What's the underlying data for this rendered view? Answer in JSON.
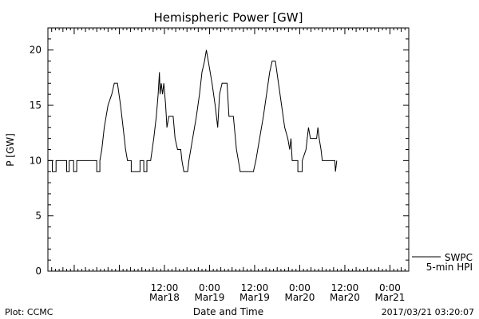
{
  "chart_data": {
    "type": "line",
    "title": "Hemispheric Power [GW]",
    "ylabel": "P [GW]",
    "xlabel": "Date and Time",
    "ylim": [
      0,
      22
    ],
    "yticks": [
      0,
      5,
      10,
      15,
      20
    ],
    "xlim": [
      "2017-03-17 05:00",
      "2017-03-21 05:00"
    ],
    "xticks": [
      {
        "t": "2017-03-18 12:00",
        "time": "12:00",
        "date": "Mar18"
      },
      {
        "t": "2017-03-19 00:00",
        "time": "0:00",
        "date": "Mar19"
      },
      {
        "t": "2017-03-19 12:00",
        "time": "12:00",
        "date": "Mar19"
      },
      {
        "t": "2017-03-20 00:00",
        "time": "0:00",
        "date": "Mar20"
      },
      {
        "t": "2017-03-20 12:00",
        "time": "12:00",
        "date": "Mar20"
      },
      {
        "t": "2017-03-21 00:00",
        "time": "0:00",
        "date": "Mar21"
      }
    ],
    "series": [
      {
        "name": "SWPC 5-min HPI",
        "color": "#000000",
        "points": [
          [
            "2017-03-17 05:00",
            10
          ],
          [
            "2017-03-17 06:10",
            10
          ],
          [
            "2017-03-17 06:10",
            9
          ],
          [
            "2017-03-17 07:10",
            9
          ],
          [
            "2017-03-17 07:10",
            10
          ],
          [
            "2017-03-17 10:00",
            10
          ],
          [
            "2017-03-17 10:00",
            9
          ],
          [
            "2017-03-17 10:40",
            9
          ],
          [
            "2017-03-17 10:40",
            10
          ],
          [
            "2017-03-17 11:50",
            10
          ],
          [
            "2017-03-17 11:50",
            9
          ],
          [
            "2017-03-17 12:40",
            9
          ],
          [
            "2017-03-17 12:40",
            10
          ],
          [
            "2017-03-17 18:00",
            10
          ],
          [
            "2017-03-17 18:00",
            9
          ],
          [
            "2017-03-17 18:50",
            9
          ],
          [
            "2017-03-17 18:50",
            10
          ],
          [
            "2017-03-17 19:20",
            11
          ],
          [
            "2017-03-17 20:00",
            13
          ],
          [
            "2017-03-17 21:00",
            15
          ],
          [
            "2017-03-17 22:00",
            16
          ],
          [
            "2017-03-17 22:40",
            17
          ],
          [
            "2017-03-17 23:30",
            17
          ],
          [
            "2017-03-18 00:20",
            15
          ],
          [
            "2017-03-18 01:00",
            13
          ],
          [
            "2017-03-18 01:40",
            11
          ],
          [
            "2017-03-18 02:10",
            10
          ],
          [
            "2017-03-18 03:10",
            10
          ],
          [
            "2017-03-18 03:10",
            9
          ],
          [
            "2017-03-18 05:30",
            9
          ],
          [
            "2017-03-18 05:30",
            10
          ],
          [
            "2017-03-18 06:30",
            10
          ],
          [
            "2017-03-18 06:30",
            9
          ],
          [
            "2017-03-18 07:20",
            9
          ],
          [
            "2017-03-18 07:20",
            10
          ],
          [
            "2017-03-18 08:20",
            10
          ],
          [
            "2017-03-18 09:10",
            12
          ],
          [
            "2017-03-18 09:50",
            14
          ],
          [
            "2017-03-18 10:20",
            16
          ],
          [
            "2017-03-18 10:40",
            18
          ],
          [
            "2017-03-18 10:50",
            16
          ],
          [
            "2017-03-18 11:10",
            17
          ],
          [
            "2017-03-18 11:30",
            16
          ],
          [
            "2017-03-18 11:50",
            17
          ],
          [
            "2017-03-18 12:20",
            15
          ],
          [
            "2017-03-18 12:40",
            13
          ],
          [
            "2017-03-18 13:10",
            14
          ],
          [
            "2017-03-18 14:20",
            14
          ],
          [
            "2017-03-18 14:50",
            12
          ],
          [
            "2017-03-18 15:30",
            11
          ],
          [
            "2017-03-18 16:20",
            11
          ],
          [
            "2017-03-18 16:40",
            10
          ],
          [
            "2017-03-18 17:10",
            9
          ],
          [
            "2017-03-18 18:10",
            9
          ],
          [
            "2017-03-18 18:30",
            10
          ],
          [
            "2017-03-18 19:30",
            12
          ],
          [
            "2017-03-18 20:30",
            14
          ],
          [
            "2017-03-18 21:20",
            16
          ],
          [
            "2017-03-18 22:00",
            18
          ],
          [
            "2017-03-18 22:40",
            19
          ],
          [
            "2017-03-18 23:10",
            20
          ],
          [
            "2017-03-18 23:40",
            19
          ],
          [
            "2017-03-19 00:40",
            17
          ],
          [
            "2017-03-19 01:30",
            15
          ],
          [
            "2017-03-19 02:10",
            13
          ],
          [
            "2017-03-19 02:40",
            16
          ],
          [
            "2017-03-19 03:20",
            17
          ],
          [
            "2017-03-19 04:40",
            17
          ],
          [
            "2017-03-19 05:10",
            14
          ],
          [
            "2017-03-19 06:20",
            14
          ],
          [
            "2017-03-19 07:10",
            11
          ],
          [
            "2017-03-19 07:40",
            10
          ],
          [
            "2017-03-19 08:10",
            9
          ],
          [
            "2017-03-19 11:40",
            9
          ],
          [
            "2017-03-19 12:20",
            10
          ],
          [
            "2017-03-19 13:20",
            12
          ],
          [
            "2017-03-19 14:20",
            14
          ],
          [
            "2017-03-19 15:10",
            16
          ],
          [
            "2017-03-19 16:00",
            18
          ],
          [
            "2017-03-19 16:40",
            19
          ],
          [
            "2017-03-19 17:30",
            19
          ],
          [
            "2017-03-19 18:20",
            17
          ],
          [
            "2017-03-19 19:10",
            15
          ],
          [
            "2017-03-19 20:00",
            13
          ],
          [
            "2017-03-19 20:50",
            12
          ],
          [
            "2017-03-19 21:20",
            11
          ],
          [
            "2017-03-19 21:40",
            12
          ],
          [
            "2017-03-19 22:00",
            10
          ],
          [
            "2017-03-19 23:30",
            10
          ],
          [
            "2017-03-19 23:30",
            9
          ],
          [
            "2017-03-20 00:40",
            9
          ],
          [
            "2017-03-20 00:40",
            10
          ],
          [
            "2017-03-20 01:40",
            11
          ],
          [
            "2017-03-20 02:20",
            13
          ],
          [
            "2017-03-20 02:50",
            12
          ],
          [
            "2017-03-20 04:30",
            12
          ],
          [
            "2017-03-20 04:50",
            13
          ],
          [
            "2017-03-20 05:10",
            12
          ],
          [
            "2017-03-20 05:40",
            11
          ],
          [
            "2017-03-20 06:00",
            10
          ],
          [
            "2017-03-20 09:20",
            10
          ],
          [
            "2017-03-20 09:30",
            9
          ],
          [
            "2017-03-20 09:50",
            10
          ]
        ]
      }
    ],
    "legend": {
      "line1": "SWPC",
      "line2": "5-min HPI",
      "placement": "bottom-right outside plot"
    },
    "grid": false
  },
  "footer": {
    "left": "Plot: CCMC",
    "center": "Date and Time",
    "right": "2017/03/21 03:20:07"
  }
}
